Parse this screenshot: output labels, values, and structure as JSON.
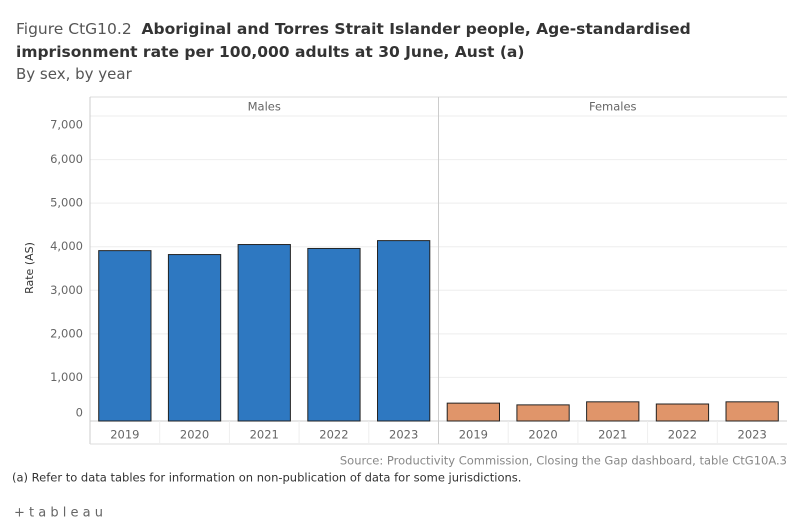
{
  "chart_data": {
    "type": "bar",
    "figure_label": "Figure CtG10.2",
    "title": "Aboriginal and Torres Strait Islander people, Age-standardised imprisonment rate per 100,000 adults at 30 June, Aust (a)",
    "subtitle": "By sex, by year",
    "y_label": "Rate (AS)",
    "categories": [
      "2019",
      "2020",
      "2021",
      "2022",
      "2023"
    ],
    "series": [
      {
        "name": "Males",
        "color": "#2e78c1",
        "values": [
          3910,
          3820,
          4050,
          3960,
          4140
        ]
      },
      {
        "name": "Females",
        "color": "#e0956a",
        "values": [
          410,
          370,
          440,
          390,
          440
        ]
      }
    ],
    "ylim": [
      0,
      7000
    ],
    "yticks": [
      0,
      {
        "value": 1000,
        "label": "1,000"
      },
      {
        "value": 2000,
        "label": "2,000"
      },
      {
        "value": 3000,
        "label": "3,000"
      },
      {
        "value": 4000,
        "label": "4,000"
      },
      {
        "value": 5000,
        "label": "5,000"
      },
      {
        "value": 6000,
        "label": "6,000"
      },
      {
        "value": 7000,
        "label": "7,000"
      }
    ],
    "grid": true,
    "source": "Source: Productivity Commission, Closing the Gap dashboard, table CtG10A.3",
    "note": "(a) Refer to data tables for information on non-publication of data for some jurisdictions.",
    "brand": "+ t a b l e a u"
  }
}
